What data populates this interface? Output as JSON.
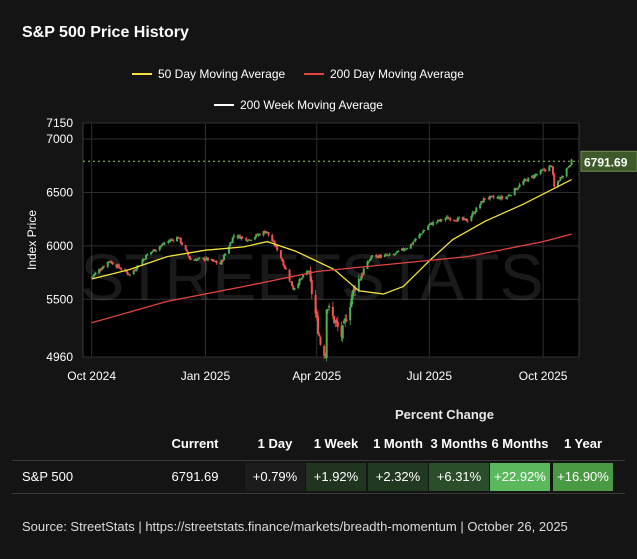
{
  "title": "S&P 500 Price History",
  "legend": {
    "ma50": "50 Day Moving Average",
    "ma200d": "200 Day Moving Average",
    "ma200w": "200 Week Moving Average"
  },
  "watermark": "STREETSTATS",
  "colors": {
    "background": "#141414",
    "plot_bg": "#000000",
    "up_candle": "#4caf50",
    "down_candle": "#ef5350",
    "ma50": "#f2e23c",
    "ma200d": "#e0443c",
    "ma200w": "#ffffff",
    "current_line": "#9ccc65",
    "current_label_bg": "#3f5a2a"
  },
  "chart_data": {
    "type": "candlestick",
    "ylabel": "Index Price",
    "ylim": [
      4960,
      7150
    ],
    "yticks": [
      4960,
      5500,
      6000,
      6500,
      7000,
      7150
    ],
    "xticks": [
      "Oct 2024",
      "Jan 2025",
      "Apr 2025",
      "Jul 2025",
      "Oct 2025"
    ],
    "current_value": 6791.69,
    "current_label": "6791.69",
    "price_path": [
      [
        "2024-10-01",
        5710
      ],
      [
        "2024-10-15",
        5860
      ],
      [
        "2024-11-01",
        5730
      ],
      [
        "2024-11-15",
        5920
      ],
      [
        "2024-12-01",
        6040
      ],
      [
        "2024-12-10",
        6080
      ],
      [
        "2024-12-20",
        5870
      ],
      [
        "2025-01-01",
        5880
      ],
      [
        "2025-01-13",
        5830
      ],
      [
        "2025-01-24",
        6100
      ],
      [
        "2025-02-05",
        6060
      ],
      [
        "2025-02-19",
        6140
      ],
      [
        "2025-03-01",
        5950
      ],
      [
        "2025-03-13",
        5600
      ],
      [
        "2025-03-25",
        5770
      ],
      [
        "2025-04-04",
        5090
      ],
      [
        "2025-04-08",
        4980
      ],
      [
        "2025-04-09",
        5450
      ],
      [
        "2025-04-21",
        5160
      ],
      [
        "2025-05-01",
        5600
      ],
      [
        "2025-05-15",
        5900
      ],
      [
        "2025-06-01",
        5910
      ],
      [
        "2025-06-15",
        6000
      ],
      [
        "2025-07-01",
        6200
      ],
      [
        "2025-07-15",
        6260
      ],
      [
        "2025-08-01",
        6240
      ],
      [
        "2025-08-15",
        6450
      ],
      [
        "2025-09-01",
        6450
      ],
      [
        "2025-09-15",
        6600
      ],
      [
        "2025-10-08",
        6750
      ],
      [
        "2025-10-10",
        6550
      ],
      [
        "2025-10-24",
        6791.69
      ]
    ],
    "series": [
      {
        "name": "50 Day Moving Average",
        "points": [
          [
            "2024-10-01",
            5690
          ],
          [
            "2024-11-01",
            5780
          ],
          [
            "2024-12-01",
            5900
          ],
          [
            "2025-01-01",
            5960
          ],
          [
            "2025-02-01",
            5990
          ],
          [
            "2025-02-20",
            6040
          ],
          [
            "2025-03-15",
            5950
          ],
          [
            "2025-04-15",
            5780
          ],
          [
            "2025-05-05",
            5580
          ],
          [
            "2025-05-25",
            5550
          ],
          [
            "2025-06-10",
            5620
          ],
          [
            "2025-07-01",
            5860
          ],
          [
            "2025-07-20",
            6060
          ],
          [
            "2025-08-15",
            6230
          ],
          [
            "2025-09-15",
            6390
          ],
          [
            "2025-10-24",
            6620
          ]
        ]
      },
      {
        "name": "200 Day Moving Average",
        "points": [
          [
            "2024-10-01",
            5280
          ],
          [
            "2024-12-01",
            5480
          ],
          [
            "2025-02-01",
            5620
          ],
          [
            "2025-04-01",
            5760
          ],
          [
            "2025-06-01",
            5830
          ],
          [
            "2025-08-01",
            5900
          ],
          [
            "2025-10-01",
            6040
          ],
          [
            "2025-10-24",
            6110
          ]
        ]
      }
    ]
  },
  "table": {
    "header": "Percent Change",
    "columns": [
      "Current",
      "1 Day",
      "1 Week",
      "1 Month",
      "3 Months",
      "6 Months",
      "1 Year"
    ],
    "rows": [
      {
        "name": "S&P 500",
        "current": "6791.69",
        "changes": [
          {
            "label": "+0.79%",
            "bg": "#1c1c1c"
          },
          {
            "label": "+1.92%",
            "bg": "#203420"
          },
          {
            "label": "+2.32%",
            "bg": "#213821"
          },
          {
            "label": "+6.31%",
            "bg": "#2a4d2a"
          },
          {
            "label": "+22.92%",
            "bg": "#5cb85c"
          },
          {
            "label": "+16.90%",
            "bg": "#4a9a44"
          }
        ]
      }
    ]
  },
  "footer": "Source:  StreetStats  |  https://streetstats.finance/markets/breadth-momentum  |  October 26, 2025"
}
